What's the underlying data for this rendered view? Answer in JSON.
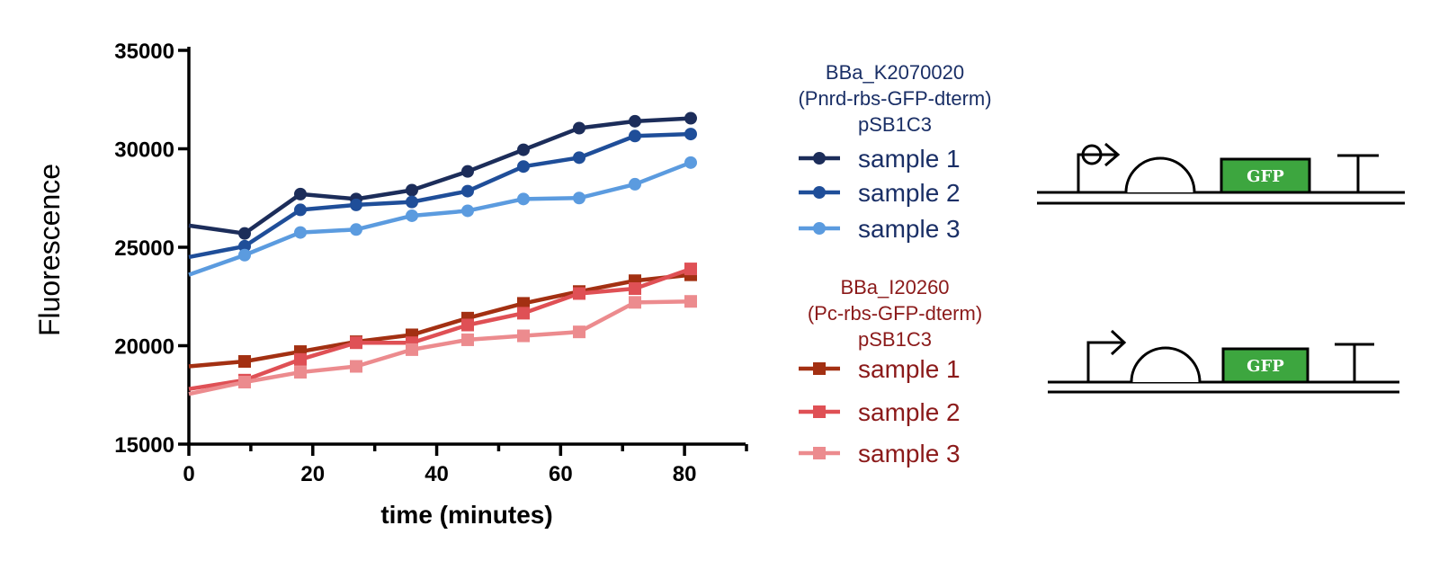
{
  "chart_data": {
    "type": "line",
    "xlabel": "time (minutes)",
    "ylabel": "Fluorescence",
    "xlim": [
      0,
      90
    ],
    "ylim": [
      15000,
      35000
    ],
    "xticks": [
      "0",
      "20",
      "40",
      "60",
      "80"
    ],
    "yticks": [
      "15000",
      "20000",
      "25000",
      "30000",
      "35000"
    ],
    "x": [
      0,
      9,
      18,
      27,
      36,
      45,
      54,
      63,
      72,
      81
    ],
    "legend_groups": [
      {
        "title_lines": [
          "BBa_K2070020",
          "(Pnrd-rbs-GFP-dterm)",
          "pSB1C3"
        ],
        "color": "#1a2f66",
        "marker": "circle",
        "series": [
          {
            "name": "sample 1",
            "color": "#1c2d5a",
            "values": [
              26100,
              25700,
              27700,
              27450,
              27900,
              28850,
              29950,
              31050,
              31400,
              31550
            ]
          },
          {
            "name": "sample 2",
            "color": "#1f4e99",
            "values": [
              24500,
              25050,
              26900,
              27150,
              27300,
              27850,
              29100,
              29550,
              30650,
              30750
            ]
          },
          {
            "name": "sample 3",
            "color": "#5b9bdf",
            "values": [
              23600,
              24600,
              25750,
              25900,
              26600,
              26850,
              27450,
              27500,
              28200,
              29300
            ]
          }
        ]
      },
      {
        "title_lines": [
          "BBa_I20260",
          "(Pc-rbs-GFP-dterm)",
          "pSB1C3"
        ],
        "color": "#8b1a1a",
        "marker": "square",
        "series": [
          {
            "name": "sample 1",
            "color": "#a33012",
            "values": [
              18950,
              19200,
              19700,
              20200,
              20550,
              21400,
              22150,
              22750,
              23300,
              23600
            ]
          },
          {
            "name": "sample 2",
            "color": "#df5055",
            "values": [
              17800,
              18250,
              19300,
              20150,
              20150,
              21050,
              21650,
              22650,
              22900,
              23900
            ]
          },
          {
            "name": "sample 3",
            "color": "#ec8b8e",
            "values": [
              17550,
              18150,
              18650,
              18950,
              19800,
              20300,
              20500,
              20700,
              22200,
              22250
            ]
          }
        ]
      }
    ],
    "grid": false,
    "legend_position": "right"
  },
  "diagrams": [
    {
      "label": "GFP",
      "promoter": "operator-promoter"
    },
    {
      "label": "GFP",
      "promoter": "promoter"
    }
  ]
}
